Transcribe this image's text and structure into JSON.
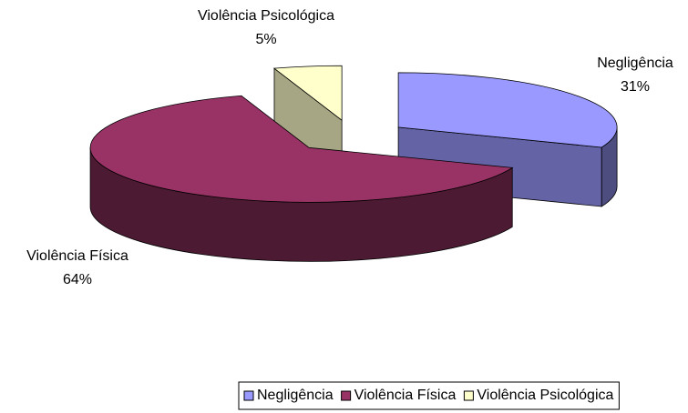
{
  "chart_data": {
    "type": "pie3d",
    "categories": [
      "Negligência",
      "Violência Física",
      "Violência Psicológica"
    ],
    "values": [
      31,
      64,
      5
    ],
    "value_labels": [
      "31%",
      "64%",
      "5%"
    ],
    "colors": [
      "#9999ff",
      "#993366",
      "#ffffcc"
    ],
    "legend": "bottom"
  }
}
